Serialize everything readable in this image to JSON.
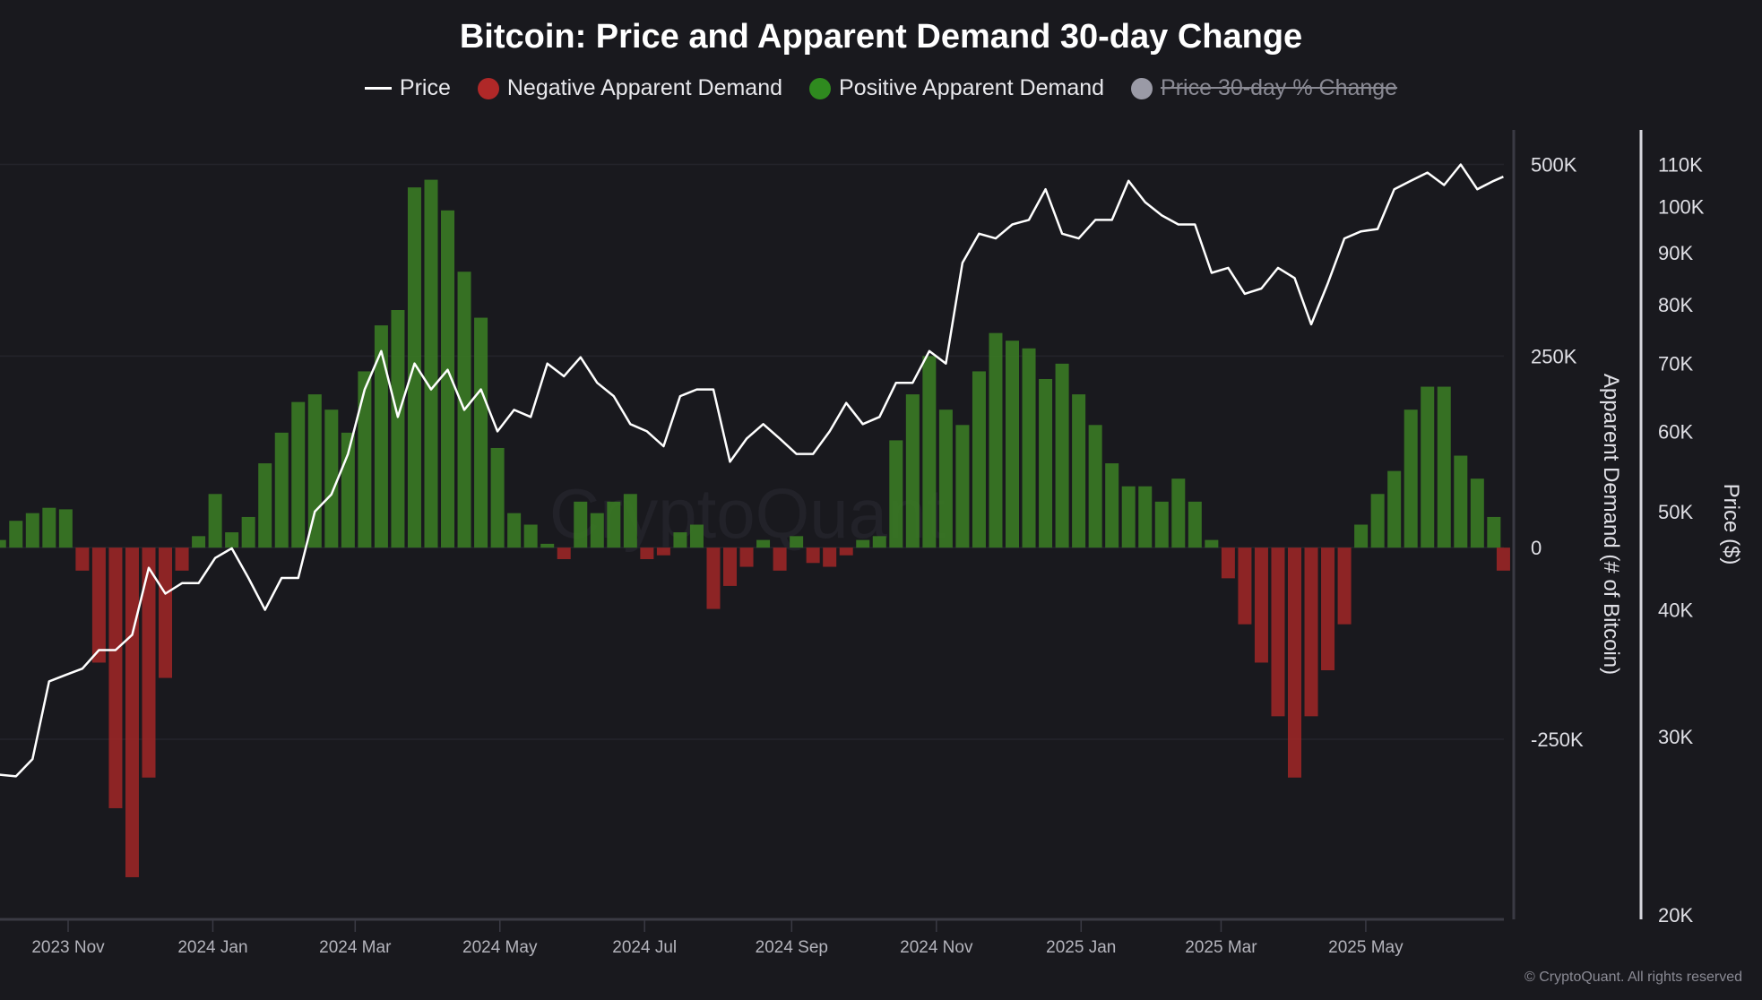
{
  "title": "Bitcoin: Price and Apparent Demand 30-day Change",
  "legend": [
    {
      "label": "Price",
      "color": "#ffffff",
      "marker": "line",
      "enabled": true
    },
    {
      "label": "Negative Apparent Demand",
      "color": "#b02828",
      "marker": "circle",
      "enabled": true
    },
    {
      "label": "Positive Apparent Demand",
      "color": "#2f8a1f",
      "marker": "circle",
      "enabled": true
    },
    {
      "label": "Price 30-day % Change",
      "color": "#9a9aa6",
      "marker": "circle",
      "enabled": false
    }
  ],
  "watermark": "CryptoQuant",
  "copyright": "© CryptoQuant. All rights reserved",
  "chart_data": {
    "type": "bar+line",
    "title": "Bitcoin: Price and Apparent Demand 30-day Change",
    "x_ticks": [
      "2023 Nov",
      "2024 Jan",
      "2024 Mar",
      "2024 May",
      "2024 Jul",
      "2024 Sep",
      "2024 Nov",
      "2025 Jan",
      "2025 Mar",
      "2025 May"
    ],
    "x_tick_dates": [
      "2023-11-01",
      "2024-01-01",
      "2024-03-01",
      "2024-05-01",
      "2024-07-01",
      "2024-09-01",
      "2024-11-01",
      "2025-01-01",
      "2025-03-01",
      "2025-05-01"
    ],
    "y_left": {
      "label": "Apparent Demand (# of Bitcoin)",
      "ticks": [
        "500K",
        "250K",
        "0",
        "-250K"
      ],
      "tick_values": [
        500000,
        250000,
        0,
        -250000
      ],
      "range": [
        -485000,
        545000
      ]
    },
    "y_right": {
      "label": "Price ($)",
      "scale": "log",
      "ticks": [
        "110K",
        "100K",
        "90K",
        "80K",
        "70K",
        "60K",
        "50K",
        "40K",
        "30K",
        "20K"
      ],
      "tick_values": [
        110000,
        100000,
        90000,
        80000,
        70000,
        60000,
        50000,
        40000,
        30000,
        20000
      ],
      "range": [
        19800,
        119000
      ]
    },
    "grid": true,
    "legend_position": "top",
    "colors": {
      "positive": "#3a7a24",
      "negative": "#9a2626",
      "price": "#ffffff"
    },
    "x": [
      "2023-10-03",
      "2023-10-10",
      "2023-10-17",
      "2023-10-24",
      "2023-10-31",
      "2023-11-07",
      "2023-11-14",
      "2023-11-21",
      "2023-11-28",
      "2023-12-05",
      "2023-12-12",
      "2023-12-19",
      "2023-12-26",
      "2024-01-02",
      "2024-01-09",
      "2024-01-16",
      "2024-01-23",
      "2024-01-30",
      "2024-02-06",
      "2024-02-13",
      "2024-02-20",
      "2024-02-27",
      "2024-03-05",
      "2024-03-12",
      "2024-03-19",
      "2024-03-26",
      "2024-04-02",
      "2024-04-09",
      "2024-04-16",
      "2024-04-23",
      "2024-04-30",
      "2024-05-07",
      "2024-05-14",
      "2024-05-21",
      "2024-05-28",
      "2024-06-04",
      "2024-06-11",
      "2024-06-18",
      "2024-06-25",
      "2024-07-02",
      "2024-07-09",
      "2024-07-16",
      "2024-07-23",
      "2024-07-30",
      "2024-08-06",
      "2024-08-13",
      "2024-08-20",
      "2024-08-27",
      "2024-09-03",
      "2024-09-10",
      "2024-09-17",
      "2024-09-24",
      "2024-10-01",
      "2024-10-08",
      "2024-10-15",
      "2024-10-22",
      "2024-10-29",
      "2024-11-05",
      "2024-11-12",
      "2024-11-19",
      "2024-11-26",
      "2024-12-03",
      "2024-12-10",
      "2024-12-17",
      "2024-12-24",
      "2024-12-31",
      "2025-01-07",
      "2025-01-14",
      "2025-01-21",
      "2025-01-28",
      "2025-02-04",
      "2025-02-11",
      "2025-02-18",
      "2025-02-25",
      "2025-03-04",
      "2025-03-11",
      "2025-03-18",
      "2025-03-25",
      "2025-04-01",
      "2025-04-08",
      "2025-04-15",
      "2025-04-22",
      "2025-04-29",
      "2025-05-06",
      "2025-05-13",
      "2025-05-20",
      "2025-05-27",
      "2025-06-03",
      "2025-06-10",
      "2025-06-17",
      "2025-06-24",
      "2025-06-28"
    ],
    "series": [
      {
        "name": "Apparent Demand",
        "type": "bar",
        "values": [
          10000,
          35000,
          45000,
          52000,
          50000,
          -30000,
          -150000,
          -340000,
          -430000,
          -300000,
          -170000,
          -30000,
          15000,
          70000,
          20000,
          40000,
          110000,
          150000,
          190000,
          200000,
          180000,
          150000,
          230000,
          290000,
          310000,
          470000,
          480000,
          440000,
          360000,
          300000,
          130000,
          45000,
          30000,
          5000,
          -15000,
          60000,
          45000,
          60000,
          70000,
          -15000,
          -10000,
          20000,
          30000,
          -80000,
          -50000,
          -25000,
          10000,
          -30000,
          15000,
          -20000,
          -25000,
          -10000,
          10000,
          15000,
          140000,
          200000,
          250000,
          180000,
          160000,
          230000,
          280000,
          270000,
          260000,
          220000,
          240000,
          200000,
          160000,
          110000,
          80000,
          80000,
          60000,
          90000,
          60000,
          10000,
          -40000,
          -100000,
          -150000,
          -220000,
          -300000,
          -220000,
          -160000,
          -100000,
          30000,
          70000,
          100000,
          180000,
          210000,
          210000,
          120000,
          90000,
          40000,
          -30000
        ]
      },
      {
        "name": "Price",
        "type": "line",
        "values": [
          27500,
          27400,
          28500,
          34000,
          34500,
          35000,
          36500,
          36500,
          37800,
          44000,
          41500,
          42500,
          42500,
          45000,
          46000,
          43000,
          40000,
          43000,
          43000,
          50000,
          52000,
          57000,
          66000,
          72000,
          62000,
          70000,
          66000,
          69000,
          63000,
          66000,
          60000,
          63000,
          62000,
          70000,
          68000,
          71000,
          67000,
          65000,
          61000,
          60000,
          58000,
          65000,
          66000,
          66000,
          56000,
          59000,
          61000,
          59000,
          57000,
          57000,
          60000,
          64000,
          61000,
          62000,
          67000,
          67000,
          72000,
          70000,
          88000,
          94000,
          93000,
          96000,
          97000,
          104000,
          94000,
          93000,
          97000,
          97000,
          106000,
          101000,
          98000,
          96000,
          96000,
          86000,
          87000,
          82000,
          83000,
          87000,
          85000,
          76500,
          84000,
          93000,
          94500,
          95000,
          104000,
          106000,
          108000,
          105000,
          110000,
          104000,
          106000,
          107000
        ]
      }
    ]
  }
}
